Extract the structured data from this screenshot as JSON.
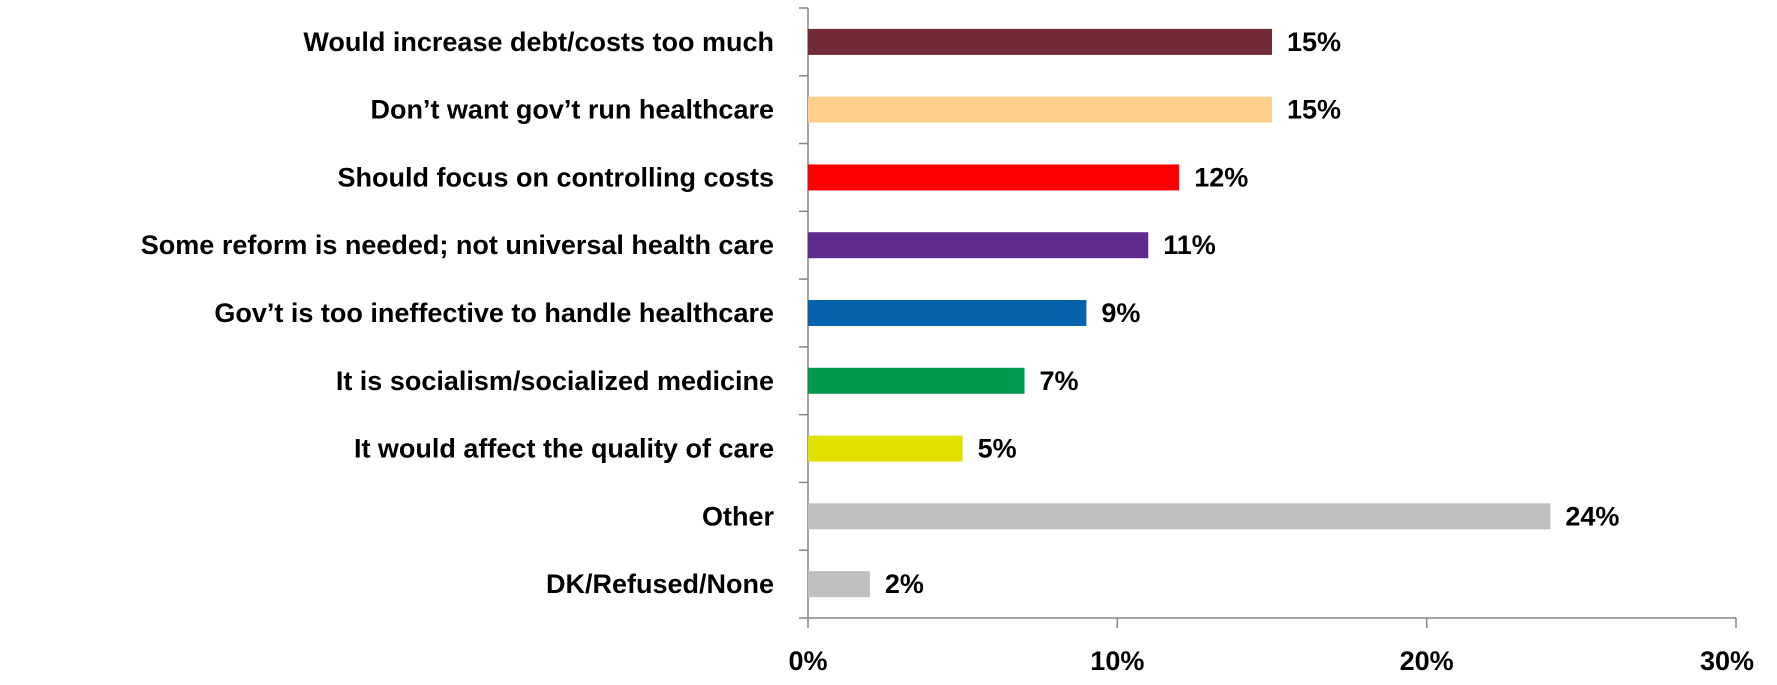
{
  "chart_data": {
    "type": "bar",
    "orientation": "horizontal",
    "title": "",
    "xlabel": "",
    "ylabel": "",
    "categories": [
      "Would increase debt/costs too much",
      "Don’t want gov’t run healthcare",
      "Should focus on controlling costs",
      "Some reform is needed; not universal health care",
      "Gov’t is too ineffective to handle healthcare",
      "It is socialism/socialized medicine",
      "It would affect the quality of care",
      "Other",
      "DK/Refused/None"
    ],
    "values": [
      15,
      15,
      12,
      11,
      9,
      7,
      5,
      24,
      2
    ],
    "value_labels": [
      "15%",
      "15%",
      "12%",
      "11%",
      "9%",
      "7%",
      "5%",
      "24%",
      "2%"
    ],
    "colors": [
      "#722B37",
      "#FCCF8A",
      "#FF0000",
      "#5F2A8E",
      "#0563AE",
      "#009A4C",
      "#E1E000",
      "#BFBFBF",
      "#BFBFBF"
    ],
    "xlim": [
      0,
      30
    ],
    "xticks": [
      0,
      10,
      20,
      30
    ],
    "xtick_labels": [
      "0%",
      "10%",
      "20%",
      "30%"
    ],
    "grid": false,
    "legend": "none"
  }
}
